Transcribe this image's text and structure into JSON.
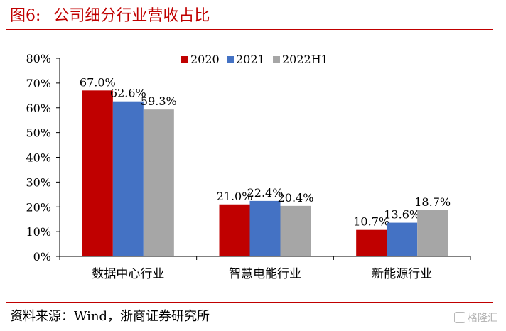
{
  "figure": {
    "label": "图6:",
    "title": "公司细分行业营收占比",
    "source": "资料来源：Wind，浙商证券研究所",
    "watermark": "格隆汇"
  },
  "colors": {
    "accent": "#c00000",
    "series": [
      "#c00000",
      "#4472c4",
      "#a6a6a6"
    ]
  },
  "chart_data": {
    "type": "bar",
    "categories": [
      "数据中心行业",
      "智慧电能行业",
      "新能源行业"
    ],
    "series": [
      {
        "name": "2020",
        "values": [
          67.0,
          21.0,
          10.7
        ]
      },
      {
        "name": "2021",
        "values": [
          62.6,
          22.4,
          13.6
        ]
      },
      {
        "name": "2022H1",
        "values": [
          59.3,
          20.4,
          18.7
        ]
      }
    ],
    "value_labels": [
      [
        "67.0%",
        "21.0%",
        "10.7%"
      ],
      [
        "62.6%",
        "22.4%",
        "13.6%"
      ],
      [
        "59.3%",
        "20.4%",
        "18.7%"
      ]
    ],
    "ylim": [
      0,
      80
    ],
    "yticks": [
      "0%",
      "10%",
      "20%",
      "30%",
      "40%",
      "50%",
      "60%",
      "70%",
      "80%"
    ],
    "grid": false,
    "legend": "top-right"
  }
}
